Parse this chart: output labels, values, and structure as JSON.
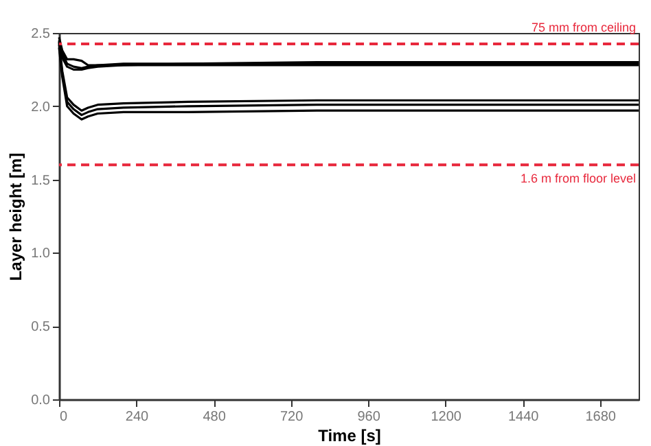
{
  "chart_data": {
    "type": "line",
    "xlabel": "Time [s]",
    "ylabel": "Layer height [m]",
    "xlim": [
      0,
      1800
    ],
    "ylim": [
      0,
      2.5
    ],
    "xticks": [
      0,
      240,
      480,
      720,
      960,
      1200,
      1440,
      1680
    ],
    "yticks": [
      {
        "value": 0,
        "label": "0.0"
      },
      {
        "value": 0.5,
        "label": "0.5"
      },
      {
        "value": 1,
        "label": "1.0"
      },
      {
        "value": 1.5,
        "label": "1.5"
      },
      {
        "value": 2,
        "label": "2.0"
      },
      {
        "value": 2.5,
        "label": "2.5"
      }
    ],
    "x": [
      0,
      10,
      25,
      45,
      70,
      90,
      120,
      200,
      400,
      800,
      1200,
      1800
    ],
    "series": [
      {
        "color": "#000000",
        "values": [
          2.47,
          2.38,
          2.32,
          2.32,
          2.31,
          2.28,
          2.28,
          2.29,
          2.29,
          2.3,
          2.3,
          2.3
        ]
      },
      {
        "color": "#000000",
        "values": [
          2.45,
          2.33,
          2.27,
          2.25,
          2.25,
          2.26,
          2.27,
          2.28,
          2.29,
          2.29,
          2.29,
          2.29
        ]
      },
      {
        "color": "#000000",
        "values": [
          2.43,
          2.36,
          2.29,
          2.27,
          2.26,
          2.27,
          2.28,
          2.28,
          2.28,
          2.28,
          2.28,
          2.28
        ]
      },
      {
        "color": "#000000",
        "values": [
          2.4,
          2.2,
          2.0,
          1.95,
          1.91,
          1.93,
          1.95,
          1.96,
          1.96,
          1.97,
          1.97,
          1.97
        ]
      },
      {
        "color": "#000000",
        "values": [
          2.42,
          2.22,
          2.03,
          1.98,
          1.94,
          1.96,
          1.98,
          1.99,
          2.0,
          2.01,
          2.01,
          2.01
        ]
      },
      {
        "color": "#000000",
        "values": [
          2.44,
          2.24,
          2.06,
          2.01,
          1.97,
          1.99,
          2.01,
          2.02,
          2.03,
          2.04,
          2.04,
          2.04
        ]
      }
    ],
    "ref_lines": [
      {
        "axis": "y",
        "value": 2.425,
        "label": "75 mm from ceiling",
        "color": "#e8283c",
        "line_style": "dashed"
      },
      {
        "axis": "y",
        "value": 1.6,
        "label": "1.6 m from floor level",
        "color": "#e8283c",
        "line_style": "dashed"
      }
    ],
    "grid": false,
    "legend": false
  }
}
